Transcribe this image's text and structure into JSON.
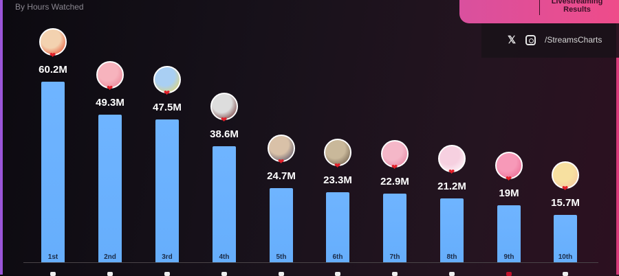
{
  "header": {
    "subtitle": "By Hours Watched",
    "brand_text": "Livestreaming Results"
  },
  "social": {
    "x_icon": "x-logo-icon",
    "instagram_icon": "instagram-icon",
    "handle": "/StreamsCharts"
  },
  "chart_data": {
    "type": "bar",
    "title": "",
    "subtitle": "By Hours Watched",
    "categories": [
      "1st",
      "2nd",
      "3rd",
      "4th",
      "5th",
      "6th",
      "7th",
      "8th",
      "9th",
      "10th"
    ],
    "values": [
      60.2,
      49.3,
      47.5,
      38.6,
      24.7,
      23.3,
      22.9,
      21.2,
      19,
      15.7
    ],
    "value_labels": [
      "60.2M",
      "49.3M",
      "47.5M",
      "38.6M",
      "24.7M",
      "23.3M",
      "22.9M",
      "21.2M",
      "19M",
      "15.7M"
    ],
    "unit": "M hours",
    "ylim": [
      0,
      62
    ],
    "grid": false,
    "bar_color": "#6fb4ff"
  },
  "colors": {
    "accent": "#ee4c8a",
    "bar": "#6fb4ff",
    "background": "#17111a"
  }
}
